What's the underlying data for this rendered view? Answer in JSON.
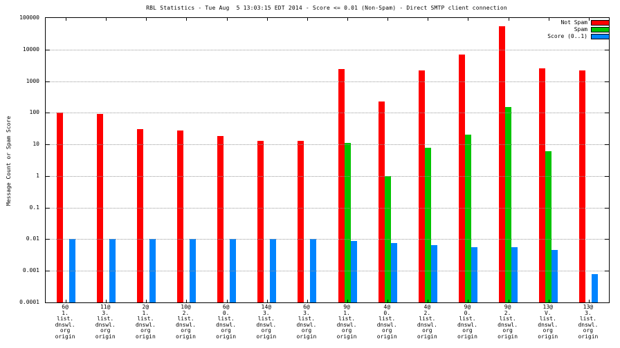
{
  "title": "RBL Statistics - Tue Aug  5 13:03:15 EDT 2014 - Score <= 0.01 (Non-Spam) - Direct SMTP client connection",
  "ylabel": "Message Count or Spam Score",
  "colors": {
    "not_spam": "#ff0000",
    "spam": "#00c400",
    "score": "#0084ff"
  },
  "chart_data": {
    "type": "bar",
    "scale": "log",
    "ylim": [
      0.0001,
      100000
    ],
    "grid": true,
    "legend_position": "top-right",
    "ytick_labels": [
      "100000",
      "10000",
      "1000",
      "100",
      "10",
      "1",
      "0.1",
      "0.01",
      "0.001",
      "0.0001"
    ],
    "categories": [
      "6@\n1.\nlist.\ndnswl.\norg\norigin",
      "11@\n3.\nlist.\ndnswl.\norg\norigin",
      "2@\n1.\nlist.\ndnswl.\norg\norigin",
      "10@\n2.\nlist.\ndnswl.\norg\norigin",
      "6@\n0.\nlist.\ndnswl.\norg\norigin",
      "14@\n3.\nlist.\ndnswl.\norg\norigin",
      "6@\n3.\nlist.\ndnswl.\norg\norigin",
      "9@\n1.\nlist.\ndnswl.\norg\norigin",
      "4@\n0.\nlist.\ndnswl.\norg\norigin",
      "4@\n2.\nlist.\ndnswl.\norg\norigin",
      "9@\n0.\nlist.\ndnswl.\norg\norigin",
      "9@\n2.\nlist.\ndnswl.\norg\norigin",
      "13@\nV.\nlist.\ndnswl.\norg\norigin",
      "13@\n3.\nlist.\ndnswl.\norg\norigin"
    ],
    "series": [
      {
        "name": "Not Spam",
        "color": "#ff0000",
        "values": [
          100,
          90,
          30,
          28,
          18,
          13,
          13,
          2400,
          230,
          2200,
          7000,
          55000,
          2500,
          2200
        ]
      },
      {
        "name": "Spam",
        "color": "#00c400",
        "values": [
          0,
          0,
          0,
          0,
          0,
          0,
          0,
          11,
          1,
          8,
          20,
          150,
          6,
          0
        ]
      },
      {
        "name": "Score (0..1)",
        "color": "#0084ff",
        "values": [
          0.01,
          0.01,
          0.01,
          0.01,
          0.01,
          0.01,
          0.01,
          0.009,
          0.0075,
          0.0065,
          0.0055,
          0.0055,
          0.0045,
          0.0008
        ]
      }
    ]
  }
}
